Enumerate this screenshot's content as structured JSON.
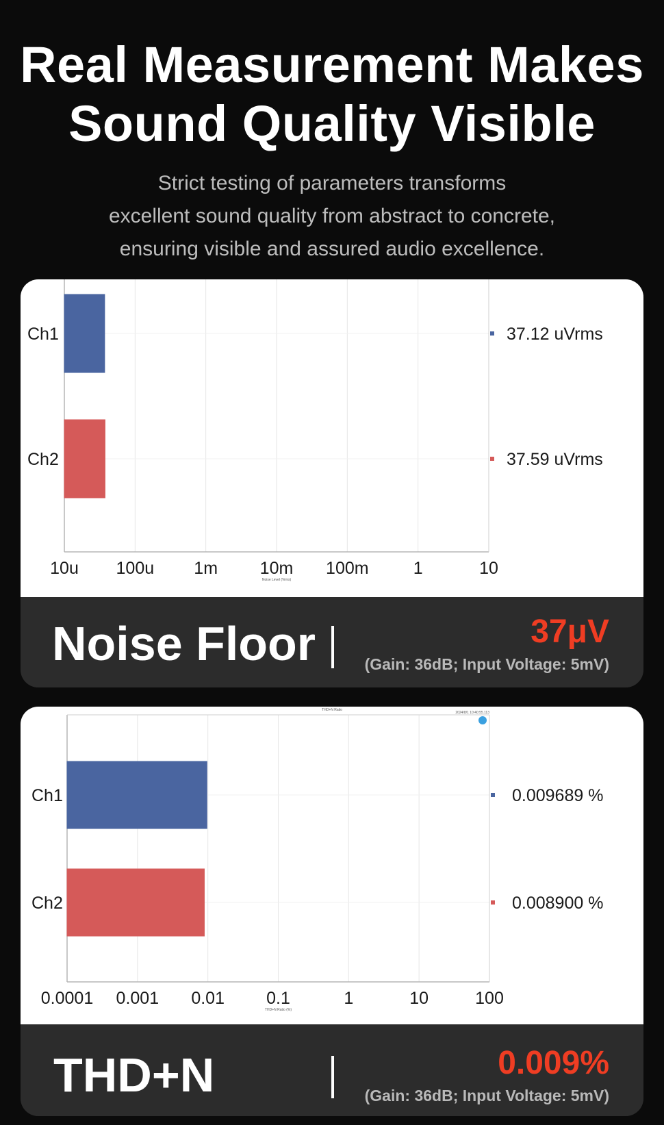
{
  "header": {
    "title_line1": "Real Measurement Makes",
    "title_line2": "Sound Quality Visible",
    "subtitle_line1": "Strict testing of parameters transforms",
    "subtitle_line2": "excellent sound quality from abstract to concrete,",
    "subtitle_line3": "ensuring visible and assured audio excellence."
  },
  "colors": {
    "ch1": "#4a65a0",
    "ch2": "#d55a59",
    "accent": "#ef3d23"
  },
  "chart_data": [
    {
      "type": "bar",
      "orientation": "horizontal",
      "scale": "log",
      "title": "",
      "xlabel": "Noise Level (Vrms)",
      "xlim": [
        1e-05,
        10
      ],
      "ticks": [
        {
          "value": 1e-05,
          "label": "10u"
        },
        {
          "value": 0.0001,
          "label": "100u"
        },
        {
          "value": 0.001,
          "label": "1m"
        },
        {
          "value": 0.01,
          "label": "10m"
        },
        {
          "value": 0.1,
          "label": "100m"
        },
        {
          "value": 1,
          "label": "1"
        },
        {
          "value": 10,
          "label": "10"
        }
      ],
      "categories": [
        "Ch1",
        "Ch2"
      ],
      "values": [
        3.712e-05,
        3.759e-05
      ],
      "value_labels": [
        "37.12  uVrms",
        "37.59  uVrms"
      ],
      "grid": true
    },
    {
      "type": "bar",
      "orientation": "horizontal",
      "scale": "log",
      "title": "THD+N Ratio",
      "timestamp": "2024/8/1 10:40:55.113",
      "xlabel": "THD+N Ratio (%)",
      "xlim": [
        0.0001,
        100
      ],
      "ticks": [
        {
          "value": 0.0001,
          "label": "0.0001"
        },
        {
          "value": 0.001,
          "label": "0.001"
        },
        {
          "value": 0.01,
          "label": "0.01"
        },
        {
          "value": 0.1,
          "label": "0.1"
        },
        {
          "value": 1,
          "label": "1"
        },
        {
          "value": 10,
          "label": "10"
        },
        {
          "value": 100,
          "label": "100"
        }
      ],
      "categories": [
        "Ch1",
        "Ch2"
      ],
      "values": [
        0.009689,
        0.0089
      ],
      "value_labels": [
        "0.009689  %",
        "0.008900  %"
      ],
      "grid": true
    }
  ],
  "noise_banner": {
    "name": "Noise Floor",
    "value": "37μV",
    "note": "(Gain: 36dB; Input Voltage: 5mV)"
  },
  "thd_banner": {
    "name": "THD+N",
    "value": "0.009%",
    "note": "(Gain: 36dB; Input Voltage: 5mV)"
  }
}
